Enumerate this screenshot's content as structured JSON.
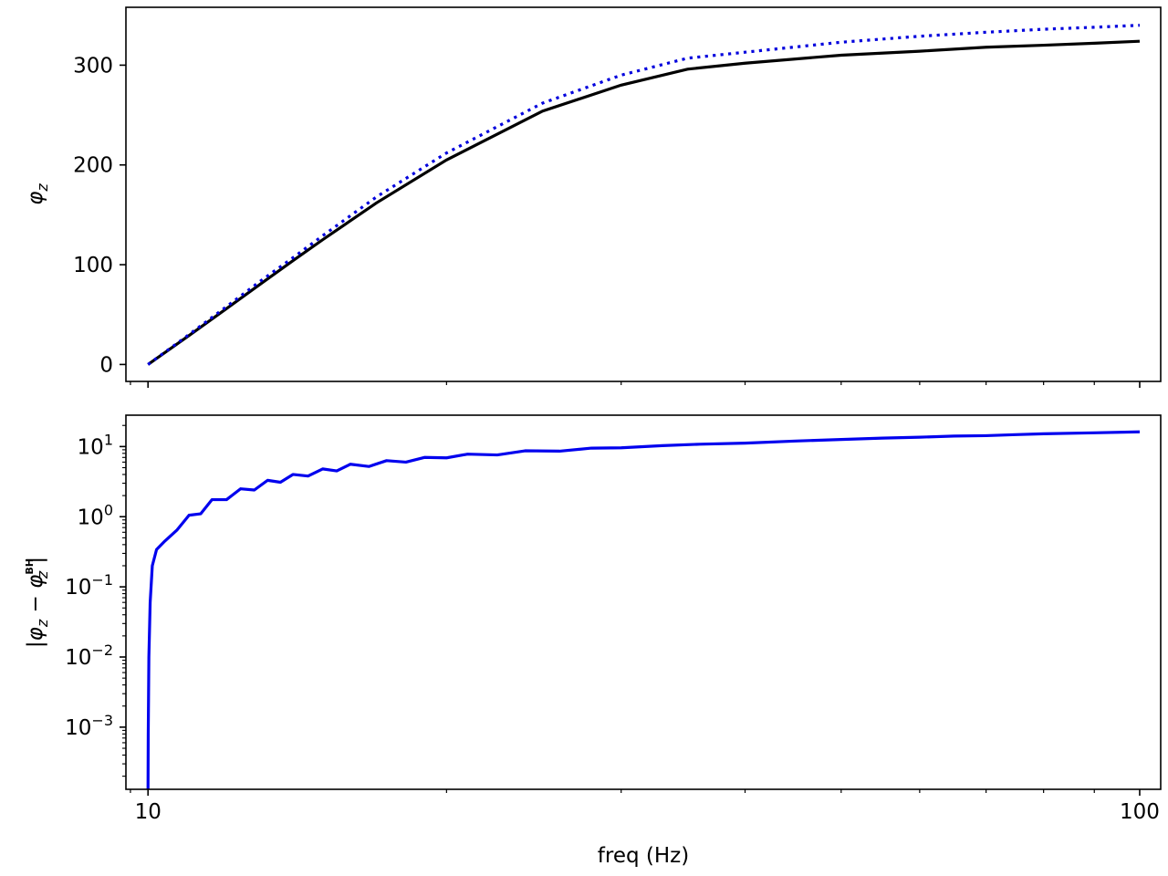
{
  "chart_data": [
    {
      "type": "line",
      "xscale": "log",
      "xlim": [
        9.5,
        105
      ],
      "ylim": [
        -17,
        358
      ],
      "ylabel_symbol": "φ",
      "ylabel_sub": "z",
      "yticks": [
        {
          "value": 0,
          "label": "0"
        },
        {
          "value": 100,
          "label": "100"
        },
        {
          "value": 200,
          "label": "200"
        },
        {
          "value": 300,
          "label": "300"
        }
      ],
      "xtick_values": [
        10,
        20,
        30,
        40,
        50,
        60,
        70,
        80,
        90,
        100
      ],
      "grid": false,
      "series": [
        {
          "color": "#000000",
          "style": "solid",
          "x": [
            10,
            11,
            12,
            13,
            14,
            15,
            17,
            20,
            25,
            30,
            35,
            40,
            50,
            60,
            70,
            80,
            90,
            100
          ],
          "y": [
            0,
            29,
            56,
            81,
            104,
            125,
            162,
            205,
            254,
            280,
            296,
            302,
            310,
            314,
            318,
            320,
            322,
            324
          ]
        },
        {
          "color": "#0000dd",
          "style": "dotted",
          "x": [
            10,
            11,
            12,
            13,
            14,
            15,
            17,
            20,
            25,
            30,
            35,
            40,
            50,
            60,
            70,
            80,
            90,
            100
          ],
          "y": [
            0,
            30,
            58,
            84,
            107,
            129,
            168,
            212,
            262,
            290,
            307,
            313,
            323,
            329,
            333,
            336,
            338,
            340
          ]
        }
      ]
    },
    {
      "type": "line",
      "xscale": "log",
      "yscale": "log",
      "xlim": [
        9.5,
        105
      ],
      "ylim": [
        0.00013,
        28
      ],
      "xlabel": "freq (Hz)",
      "xticks": [
        {
          "value": 10,
          "label": "10"
        },
        {
          "value": 100,
          "label": "100"
        }
      ],
      "xtick_minor": [
        20,
        30,
        40,
        50,
        60,
        70,
        80,
        90
      ],
      "yticks": [
        {
          "value": 0.001,
          "base": "10",
          "exp": "−3"
        },
        {
          "value": 0.01,
          "base": "10",
          "exp": "−2"
        },
        {
          "value": 0.1,
          "base": "10",
          "exp": "−1"
        },
        {
          "value": 1,
          "base": "10",
          "exp": "0"
        },
        {
          "value": 10,
          "base": "10",
          "exp": "1"
        }
      ],
      "ylabel_parts": {
        "open": "|φ",
        "sub1": "z",
        "minus": " − φ",
        "sub2": "z",
        "sup2": "BH",
        "close": "|"
      },
      "grid": false,
      "series": [
        {
          "color": "#0000ee",
          "style": "solid",
          "x": [
            10.0,
            10.005,
            10.02,
            10.05,
            10.1,
            10.2,
            10.4,
            10.7,
            11.0,
            11.3,
            11.6,
            12.0,
            12.4,
            12.8,
            13.2,
            13.6,
            14.0,
            14.5,
            15.0,
            15.5,
            16.0,
            16.7,
            17.4,
            18.2,
            19.0,
            20.0,
            21.0,
            22.5,
            24.0,
            26.0,
            28.0,
            30.0,
            33.0,
            36.0,
            40.0,
            45.0,
            50.0,
            55.0,
            60.0,
            65.0,
            70.0,
            75.0,
            80.0,
            90.0,
            100.0
          ],
          "y": [
            0.00013,
            0.0008,
            0.01,
            0.06,
            0.2,
            0.34,
            0.45,
            0.65,
            1.05,
            1.1,
            1.75,
            1.75,
            2.5,
            2.4,
            3.3,
            3.1,
            4.0,
            3.8,
            4.8,
            4.5,
            5.6,
            5.2,
            6.3,
            6.0,
            7.0,
            6.9,
            7.8,
            7.6,
            8.7,
            8.6,
            9.5,
            9.6,
            10.3,
            10.8,
            11.2,
            12.0,
            12.6,
            13.2,
            13.6,
            14.1,
            14.3,
            14.8,
            15.2,
            15.7,
            16.2
          ]
        }
      ]
    }
  ]
}
